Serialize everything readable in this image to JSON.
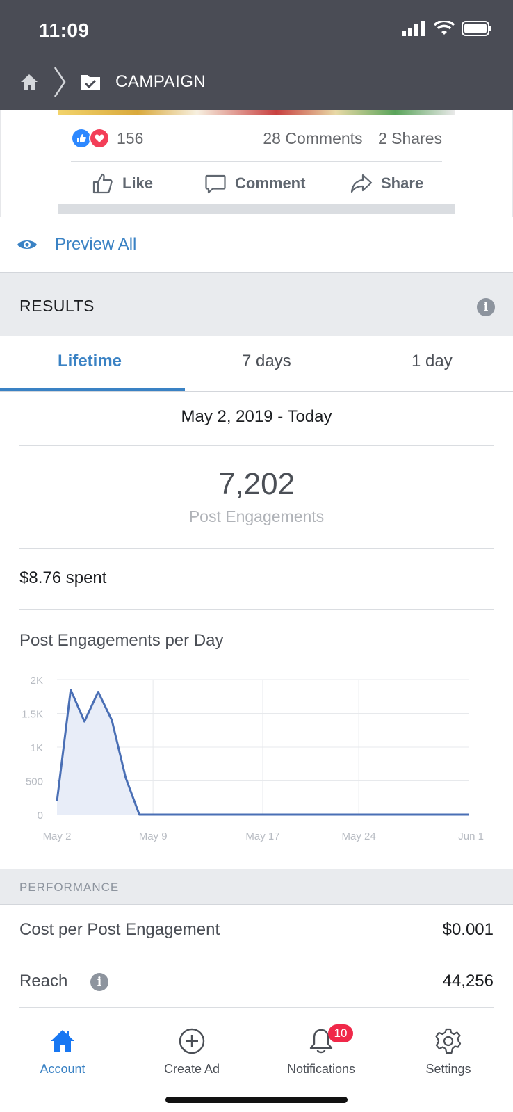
{
  "status_bar": {
    "time": "11:09"
  },
  "nav": {
    "title": "CAMPAIGN"
  },
  "post": {
    "reaction_count": "156",
    "comments": "28 Comments",
    "shares": "2 Shares",
    "actions": {
      "like": "Like",
      "comment": "Comment",
      "share": "Share"
    }
  },
  "preview": {
    "label": "Preview All"
  },
  "results": {
    "title": "RESULTS",
    "tabs": [
      "Lifetime",
      "7 days",
      "1 day"
    ],
    "active_tab": "Lifetime",
    "date_range": "May 2, 2019 - Today",
    "total": "7,202",
    "total_label": "Post Engagements",
    "spent": "$8.76 spent",
    "chart_title": "Post Engagements per Day"
  },
  "chart_data": {
    "type": "area",
    "title": "Post Engagements per Day",
    "xlabel": "",
    "ylabel": "",
    "x_tick_labels": [
      "May 2",
      "May 9",
      "May 17",
      "May 24",
      "Jun 1"
    ],
    "y_tick_labels": [
      "0",
      "500",
      "1K",
      "1.5K",
      "2K"
    ],
    "y_ticks": [
      0,
      500,
      1000,
      1500,
      2000
    ],
    "ylim": [
      0,
      2000
    ],
    "xlim": [
      "2019-05-02",
      "2019-06-01"
    ],
    "grid": true,
    "series": [
      {
        "x": [
          "2019-05-02",
          "2019-05-03",
          "2019-05-04",
          "2019-05-05",
          "2019-05-06",
          "2019-05-07",
          "2019-05-08",
          "2019-05-09",
          "2019-05-10",
          "2019-05-17",
          "2019-05-24",
          "2019-06-01"
        ],
        "y": [
          200,
          1850,
          1380,
          1820,
          1400,
          550,
          0,
          0,
          0,
          0,
          0,
          0
        ]
      }
    ],
    "colors": {
      "line": "#4a6fb5",
      "fill": "#e8edf8"
    }
  },
  "performance": {
    "title": "PERFORMANCE",
    "rows": [
      {
        "label": "Cost per Post Engagement",
        "value": "$0.001"
      },
      {
        "label": "Reach",
        "value": "44,256"
      }
    ]
  },
  "bottom_nav": {
    "items": [
      {
        "label": "Account",
        "icon": "home-icon"
      },
      {
        "label": "Create Ad",
        "icon": "plus-circle-icon"
      },
      {
        "label": "Notifications",
        "icon": "bell-icon",
        "badge": "10"
      },
      {
        "label": "Settings",
        "icon": "gear-icon"
      }
    ]
  },
  "colors": {
    "accent": "#3a82c4",
    "header_bg": "#4a4c55",
    "badge": "#f02849"
  }
}
